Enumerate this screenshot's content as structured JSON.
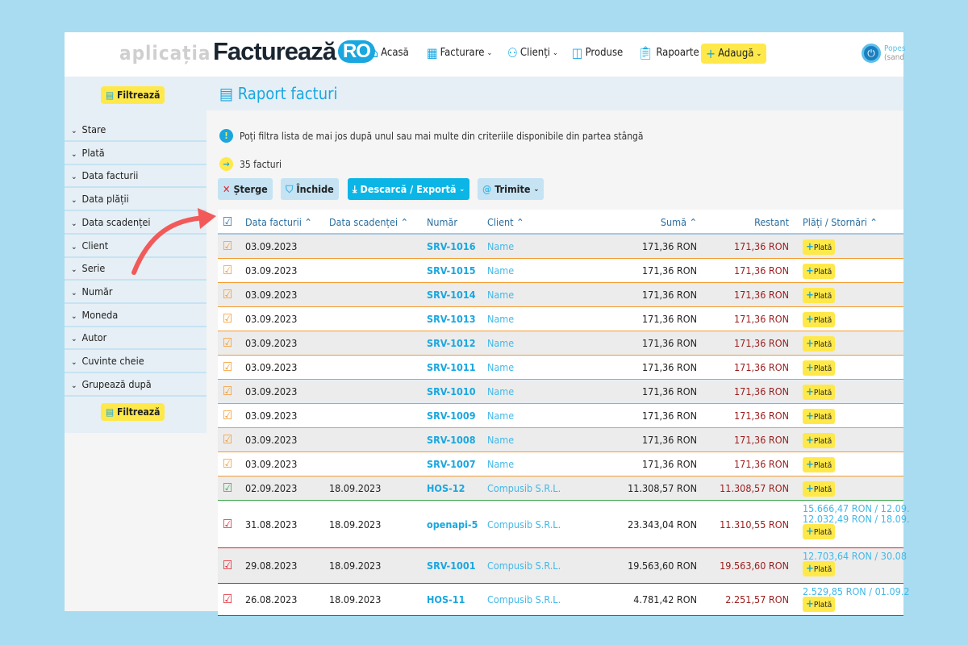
{
  "header": {
    "app_label": "aplicația",
    "brand": "Facturează",
    "brand_suffix": "RO",
    "nav": [
      {
        "label": "Acasă",
        "icon": "home-icon"
      },
      {
        "label": "Facturare",
        "icon": "invoices-icon",
        "dropdown": true
      },
      {
        "label": "Clienți",
        "icon": "clients-icon",
        "dropdown": true
      },
      {
        "label": "Produse",
        "icon": "products-icon"
      },
      {
        "label": "Rapoarte",
        "icon": "clipboard-icon"
      }
    ],
    "add_label": "Adaugă",
    "user_name": "Popes",
    "user_sub": "(sand"
  },
  "sidebar": {
    "filter_label": "Filtrează",
    "items": [
      "Stare",
      "Plată",
      "Data facturii",
      "Data plății",
      "Data scadenței",
      "Client",
      "Serie",
      "Număr",
      "Moneda",
      "Autor",
      "Cuvinte cheie",
      "Grupează după"
    ]
  },
  "page": {
    "title": "Raport facturi",
    "info": "Poți filtra lista de mai jos după unul sau mai multe din criteriile disponibile din partea stângă",
    "count": "35 facturi"
  },
  "toolbar": {
    "delete": "Șterge",
    "close": "Închide",
    "export": "Descarcă / Exportă",
    "send": "Trimite"
  },
  "table": {
    "columns": [
      "Data facturii",
      "Data scadenței",
      "Număr",
      "Client",
      "Sumă",
      "Restant",
      "Plăți / Stornări"
    ],
    "plata_label": "Plată",
    "colors": {
      "orange": "#f39a2e",
      "green": "#3aa64a",
      "red": "#e0202a"
    },
    "rows": [
      {
        "status": "orange",
        "date": "03.09.2023",
        "due": "",
        "number": "SRV-1016",
        "client": "Name",
        "sum": "171,36 RON",
        "rest": "171,36 RON",
        "payments": []
      },
      {
        "status": "orange",
        "date": "03.09.2023",
        "due": "",
        "number": "SRV-1015",
        "client": "Name",
        "sum": "171,36 RON",
        "rest": "171,36 RON",
        "payments": []
      },
      {
        "status": "orange",
        "date": "03.09.2023",
        "due": "",
        "number": "SRV-1014",
        "client": "Name",
        "sum": "171,36 RON",
        "rest": "171,36 RON",
        "payments": []
      },
      {
        "status": "orange",
        "date": "03.09.2023",
        "due": "",
        "number": "SRV-1013",
        "client": "Name",
        "sum": "171,36 RON",
        "rest": "171,36 RON",
        "payments": []
      },
      {
        "status": "orange",
        "date": "03.09.2023",
        "due": "",
        "number": "SRV-1012",
        "client": "Name",
        "sum": "171,36 RON",
        "rest": "171,36 RON",
        "payments": []
      },
      {
        "status": "orange",
        "date": "03.09.2023",
        "due": "",
        "number": "SRV-1011",
        "client": "Name",
        "sum": "171,36 RON",
        "rest": "171,36 RON",
        "payments": []
      },
      {
        "status": "orange",
        "date": "03.09.2023",
        "due": "",
        "number": "SRV-1010",
        "client": "Name",
        "sum": "171,36 RON",
        "rest": "171,36 RON",
        "payments": []
      },
      {
        "status": "orange",
        "date": "03.09.2023",
        "due": "",
        "number": "SRV-1009",
        "client": "Name",
        "sum": "171,36 RON",
        "rest": "171,36 RON",
        "payments": []
      },
      {
        "status": "orange",
        "date": "03.09.2023",
        "due": "",
        "number": "SRV-1008",
        "client": "Name",
        "sum": "171,36 RON",
        "rest": "171,36 RON",
        "payments": []
      },
      {
        "status": "orange",
        "date": "03.09.2023",
        "due": "",
        "number": "SRV-1007",
        "client": "Name",
        "sum": "171,36 RON",
        "rest": "171,36 RON",
        "payments": []
      },
      {
        "status": "green",
        "date": "02.09.2023",
        "due": "18.09.2023",
        "number": "HOS-12",
        "client": "Compusib S.R.L.",
        "sum": "11.308,57 RON",
        "rest": "11.308,57 RON",
        "payments": []
      },
      {
        "status": "red",
        "date": "31.08.2023",
        "due": "18.09.2023",
        "number": "openapi-5",
        "client": "Compusib S.R.L.",
        "sum": "23.343,04 RON",
        "rest": "11.310,55 RON",
        "payments": [
          "15.666,47 RON / 12.09.",
          "12.032,49 RON / 18.09."
        ]
      },
      {
        "status": "red",
        "date": "29.08.2023",
        "due": "18.09.2023",
        "number": "SRV-1001",
        "client": "Compusib S.R.L.",
        "sum": "19.563,60 RON",
        "rest": "19.563,60 RON",
        "payments": [
          "12.703,64 RON / 30.08"
        ]
      },
      {
        "status": "red",
        "date": "26.08.2023",
        "due": "18.09.2023",
        "number": "HOS-11",
        "client": "Compusib S.R.L.",
        "sum": "4.781,42 RON",
        "rest": "2.251,57 RON",
        "payments": [
          "2.529,85 RON / 01.09.2"
        ]
      }
    ]
  }
}
